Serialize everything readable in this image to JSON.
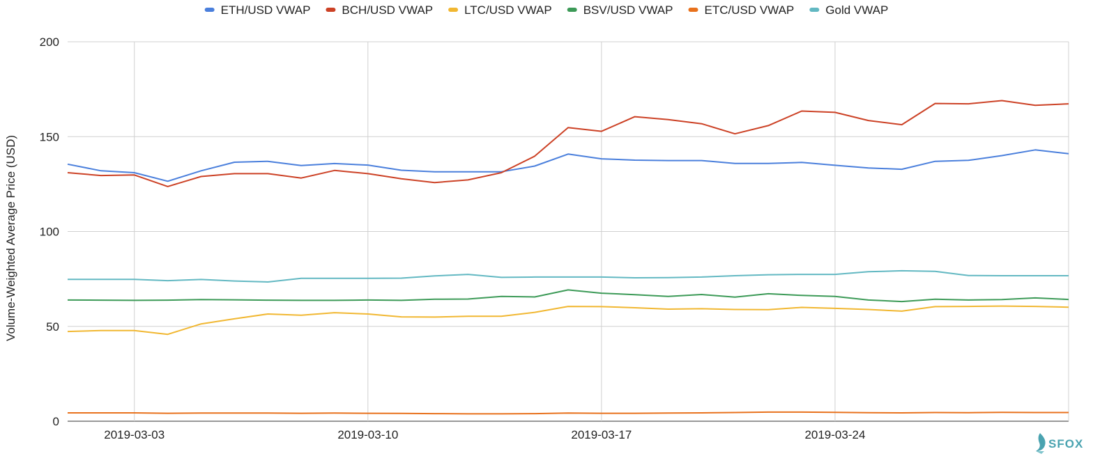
{
  "chart_data": {
    "type": "line",
    "title": "",
    "xlabel": "",
    "ylabel": "Volume-Weighted Average Price (USD)",
    "ylim": [
      0,
      200
    ],
    "yticks": [
      0,
      50,
      100,
      150,
      200
    ],
    "xticks": [
      "2019-03-03",
      "2019-03-10",
      "2019-03-17",
      "2019-03-24"
    ],
    "x": [
      "2019-03-01",
      "2019-03-02",
      "2019-03-03",
      "2019-03-04",
      "2019-03-05",
      "2019-03-06",
      "2019-03-07",
      "2019-03-08",
      "2019-03-09",
      "2019-03-10",
      "2019-03-11",
      "2019-03-12",
      "2019-03-13",
      "2019-03-14",
      "2019-03-15",
      "2019-03-16",
      "2019-03-17",
      "2019-03-18",
      "2019-03-19",
      "2019-03-20",
      "2019-03-21",
      "2019-03-22",
      "2019-03-23",
      "2019-03-24",
      "2019-03-25",
      "2019-03-26",
      "2019-03-27",
      "2019-03-28",
      "2019-03-29",
      "2019-03-30",
      "2019-03-31"
    ],
    "grid": true,
    "legend_position": "top",
    "series": [
      {
        "name": "ETH/USD VWAP",
        "color": "#4a7fdc",
        "values": [
          135.5,
          132,
          131,
          126.5,
          132,
          136.5,
          137,
          134.8,
          135.8,
          135,
          132.3,
          131.5,
          131.5,
          131.5,
          134.5,
          140.8,
          138.3,
          137.6,
          137.4,
          137.4,
          135.9,
          135.9,
          136.4,
          134.9,
          133.5,
          132.8,
          137,
          137.5,
          140,
          143,
          141
        ]
      },
      {
        "name": "BCH/USD VWAP",
        "color": "#cc4125",
        "values": [
          131,
          129.5,
          129.8,
          123.7,
          129,
          130.5,
          130.5,
          128.2,
          132.2,
          130.5,
          127.8,
          125.8,
          127.2,
          131,
          139.7,
          154.8,
          152.8,
          160.5,
          159,
          156.8,
          151.5,
          155.8,
          163.5,
          162.8,
          158.5,
          156.3,
          167.5,
          167.3,
          169,
          166.5,
          167.3
        ]
      },
      {
        "name": "LTC/USD VWAP",
        "color": "#f1b731",
        "values": [
          47.3,
          47.8,
          47.8,
          45.8,
          51.3,
          54,
          56.5,
          55.9,
          57.2,
          56.5,
          55,
          54.9,
          55.3,
          55.3,
          57.4,
          60.5,
          60.4,
          59.8,
          59.1,
          59.3,
          58.9,
          58.8,
          60,
          59.5,
          58.9,
          58,
          60.4,
          60.5,
          60.7,
          60.5,
          60.1
        ]
      },
      {
        "name": "BSV/USD VWAP",
        "color": "#3c9a57",
        "values": [
          63.9,
          63.8,
          63.7,
          63.8,
          64.1,
          64,
          63.8,
          63.7,
          63.7,
          63.9,
          63.7,
          64.3,
          64.4,
          65.8,
          65.5,
          69.2,
          67.5,
          66.7,
          65.8,
          66.8,
          65.4,
          67.2,
          66.3,
          65.8,
          63.9,
          63.1,
          64.3,
          63.9,
          64.1,
          65,
          64.2
        ]
      },
      {
        "name": "ETC/USD VWAP",
        "color": "#e8711c",
        "values": [
          4.4,
          4.4,
          4.4,
          4.2,
          4.3,
          4.3,
          4.3,
          4.2,
          4.3,
          4.2,
          4.1,
          4,
          3.9,
          3.9,
          4,
          4.3,
          4.2,
          4.2,
          4.3,
          4.4,
          4.6,
          4.8,
          4.8,
          4.7,
          4.5,
          4.4,
          4.6,
          4.5,
          4.7,
          4.6,
          4.6
        ]
      },
      {
        "name": "Gold VWAP",
        "color": "#62b8c2",
        "values": [
          74.8,
          74.8,
          74.8,
          74.1,
          74.7,
          73.9,
          73.4,
          75.3,
          75.3,
          75.3,
          75.4,
          76.6,
          77.4,
          75.8,
          76,
          76,
          76,
          75.6,
          75.7,
          76,
          76.7,
          77.2,
          77.4,
          77.4,
          78.8,
          79.3,
          79,
          76.8,
          76.7,
          76.7,
          76.7
        ]
      }
    ]
  },
  "logo": {
    "text": "SFOX"
  }
}
